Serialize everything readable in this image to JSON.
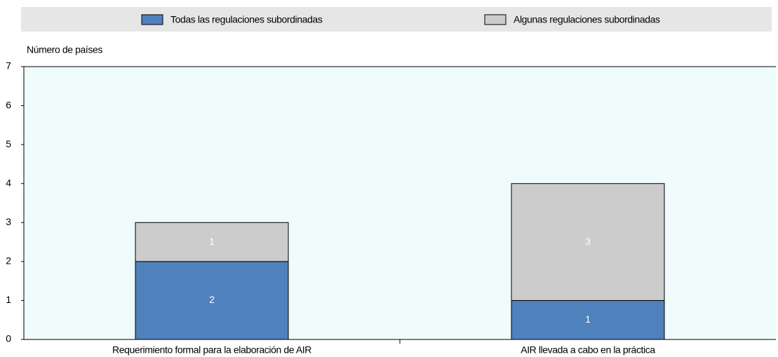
{
  "chart_data": {
    "type": "stacked_bar",
    "y_label": "Número de países",
    "categories": [
      "Requerimiento formal para la elaboración de AIR",
      "AIR llevada a cabo en la práctica"
    ],
    "series": [
      {
        "name": "Todas las regulaciones subordinadas",
        "color": "#4f81bd",
        "values": [
          2,
          1
        ]
      },
      {
        "name": "Algunas regulaciones subordinadas",
        "color": "#cccccc",
        "values": [
          1,
          3
        ]
      }
    ],
    "ylim": [
      0,
      7
    ],
    "yticks": [
      0,
      1,
      2,
      3,
      4,
      5,
      6,
      7
    ],
    "legend": "top",
    "plot_background": "#f0fbfb"
  }
}
